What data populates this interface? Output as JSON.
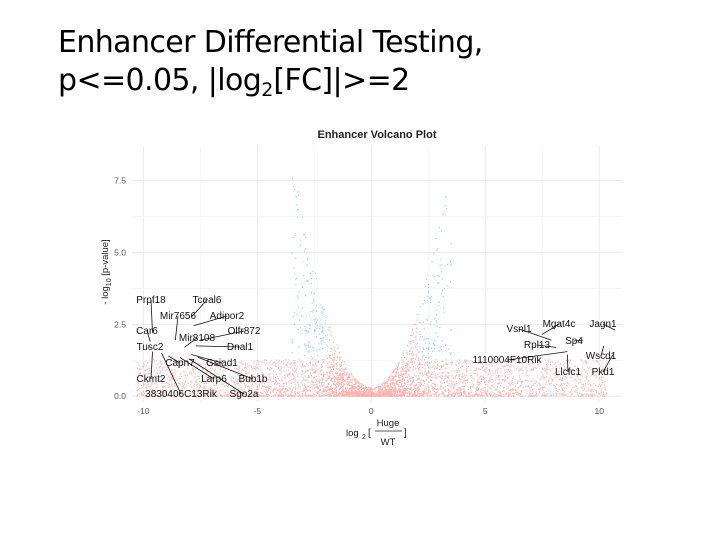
{
  "slide": {
    "title_line1": "Enhancer Differential Testing,",
    "title_line2_a": "p<=0.05, |log",
    "title_line2_sub": "2",
    "title_line2_b": "[FC]|>=2"
  },
  "chart_data": {
    "type": "scatter",
    "title": "Enhancer Volcano Plot",
    "xlabel": {
      "prefix": "log",
      "sub": "2",
      "numerator": "Huge",
      "denominator": "WT"
    },
    "ylabel": {
      "prefix": "- log",
      "sub": "10",
      "rest": " [p-value]"
    },
    "xlim": [
      -10.5,
      11
    ],
    "ylim": [
      -0.2,
      8.7
    ],
    "x_ticks": [
      -10,
      -5,
      0,
      5,
      10
    ],
    "y_ticks": [
      0.0,
      2.5,
      5.0,
      7.5
    ],
    "x_tick_labels": [
      "-10",
      "-5",
      "0",
      "5",
      "10"
    ],
    "y_tick_labels": [
      "0.0",
      "2.5",
      "5.0",
      "7.5"
    ],
    "grid": true,
    "thresholds": {
      "abs_log2fc": 2,
      "neg_log10_p": 1.3
    },
    "series": [
      {
        "color": "#F8766D"
      },
      {
        "color": "#2FB5B5"
      }
    ],
    "labeled_genes": [
      {
        "name": "Prpf18",
        "x": -9.6,
        "y": 2.2
      },
      {
        "name": "Tceal6",
        "x": -7.9,
        "y": 2.75
      },
      {
        "name": "Mir7656",
        "x": -8.6,
        "y": 1.95
      },
      {
        "name": "Adipor2",
        "x": -7.8,
        "y": 2.45
      },
      {
        "name": "Car6",
        "x": -9.7,
        "y": 1.9
      },
      {
        "name": "Mir8108",
        "x": -8.2,
        "y": 1.7
      },
      {
        "name": "Olfr872",
        "x": -7.5,
        "y": 1.95
      },
      {
        "name": "Tusc2",
        "x": -9.8,
        "y": 1.7
      },
      {
        "name": "Dnal1",
        "x": -7.7,
        "y": 1.75
      },
      {
        "name": "Capn7",
        "x": -8.9,
        "y": 1.4
      },
      {
        "name": "Gsiad1",
        "x": -7.9,
        "y": 1.45
      },
      {
        "name": "Ckmt2",
        "x": -9.6,
        "y": 1.55
      },
      {
        "name": "Larp6",
        "x": -8.4,
        "y": 1.35
      },
      {
        "name": "Bub1b",
        "x": -7.6,
        "y": 1.35
      },
      {
        "name": "3830406C13Rik",
        "x": -9.2,
        "y": 1.5
      },
      {
        "name": "Sgo2a",
        "x": -8.0,
        "y": 1.3
      },
      {
        "name": "Vsnl1",
        "x": 7.9,
        "y": 1.95
      },
      {
        "name": "Mgat4c",
        "x": 7.5,
        "y": 2.15
      },
      {
        "name": "Jagn1",
        "x": 10.7,
        "y": 2.3
      },
      {
        "name": "Sp4",
        "x": 9.3,
        "y": 1.95
      },
      {
        "name": "Rpl13",
        "x": 8.1,
        "y": 1.7
      },
      {
        "name": "Wscd1",
        "x": 10.2,
        "y": 1.75
      },
      {
        "name": "1110004F10Rik",
        "x": 8.6,
        "y": 1.55
      },
      {
        "name": "Llcfc1",
        "x": 8.6,
        "y": 1.45
      },
      {
        "name": "Pkd1",
        "x": 10.6,
        "y": 1.45
      }
    ]
  }
}
